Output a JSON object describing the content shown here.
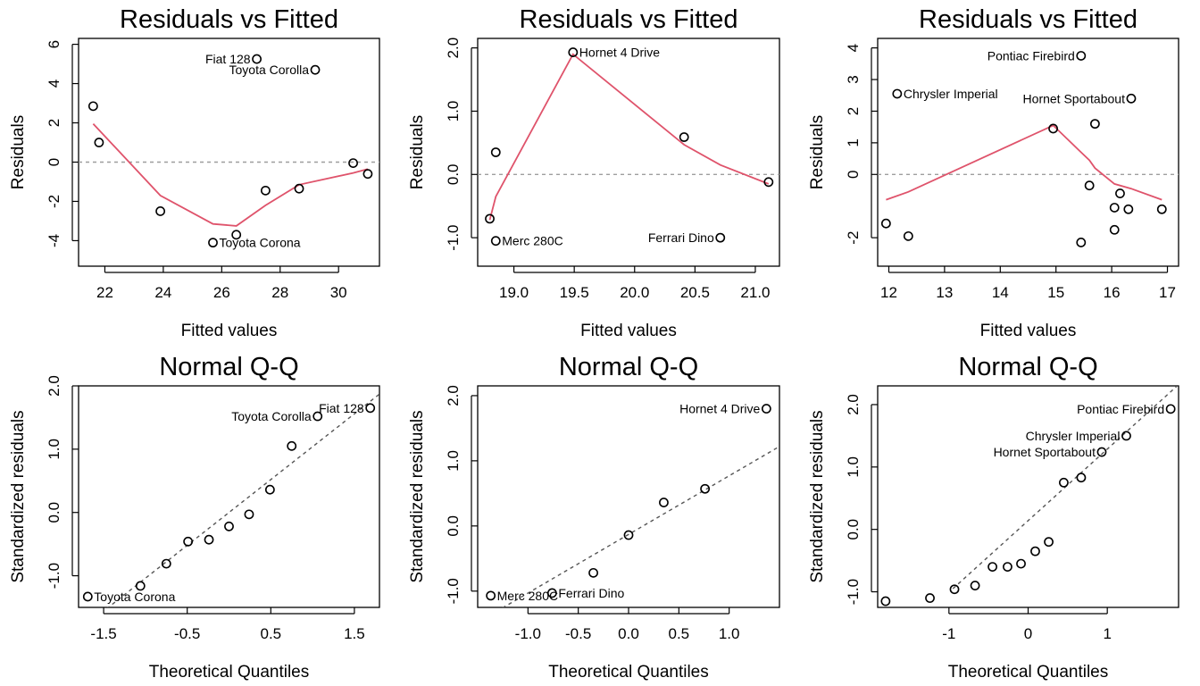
{
  "chart_data": [
    {
      "type": "scatter",
      "title": "Residuals vs Fitted",
      "xlabel": "Fitted values",
      "ylabel": "Residuals",
      "xlim": [
        21.1,
        31.4
      ],
      "ylim": [
        -5.3,
        6.3
      ],
      "xticks": [
        22,
        24,
        26,
        28,
        30
      ],
      "yticks": [
        -4,
        -2,
        0,
        2,
        4,
        6
      ],
      "ytick_labels": [
        "-4",
        "-2",
        "0",
        "2",
        "4",
        "6"
      ],
      "refline": {
        "kind": "h",
        "value": 0
      },
      "points": [
        {
          "x": 21.6,
          "y": 2.85
        },
        {
          "x": 21.8,
          "y": 1.0
        },
        {
          "x": 23.9,
          "y": -2.5
        },
        {
          "x": 25.7,
          "y": -4.1
        },
        {
          "x": 26.5,
          "y": -3.7
        },
        {
          "x": 27.2,
          "y": 5.25
        },
        {
          "x": 27.5,
          "y": -1.45
        },
        {
          "x": 28.65,
          "y": -1.35
        },
        {
          "x": 29.2,
          "y": 4.7
        },
        {
          "x": 30.5,
          "y": -0.05
        },
        {
          "x": 31.0,
          "y": -0.6
        }
      ],
      "smooth": [
        [
          21.6,
          1.95
        ],
        [
          23.9,
          -1.7
        ],
        [
          25.7,
          -3.15
        ],
        [
          26.5,
          -3.25
        ],
        [
          27.5,
          -2.2
        ],
        [
          28.65,
          -1.15
        ],
        [
          30.5,
          -0.55
        ],
        [
          31.0,
          -0.35
        ]
      ],
      "labels": [
        {
          "text": "Fiat 128",
          "x": 27.2,
          "y": 5.25,
          "pos": "left"
        },
        {
          "text": "Toyota Corolla",
          "x": 29.2,
          "y": 4.7,
          "pos": "left"
        },
        {
          "text": "Toyota Corona",
          "x": 25.7,
          "y": -4.1,
          "pos": "right"
        }
      ]
    },
    {
      "type": "scatter",
      "title": "Residuals vs Fitted",
      "xlabel": "Fitted values",
      "ylabel": "Residuals",
      "xlim": [
        18.7,
        21.2
      ],
      "ylim": [
        -1.45,
        2.15
      ],
      "xticks": [
        19.0,
        19.5,
        20.0,
        20.5,
        21.0
      ],
      "xtick_labels": [
        "19.0",
        "19.5",
        "20.0",
        "20.5",
        "21.0"
      ],
      "yticks": [
        -1.0,
        0.0,
        1.0,
        2.0
      ],
      "ytick_labels": [
        "-1.0",
        "0.0",
        "1.0",
        "2.0"
      ],
      "refline": {
        "kind": "h",
        "value": 0
      },
      "points": [
        {
          "x": 18.8,
          "y": -0.7
        },
        {
          "x": 18.85,
          "y": 0.35
        },
        {
          "x": 18.85,
          "y": -1.05
        },
        {
          "x": 19.49,
          "y": 1.93
        },
        {
          "x": 20.41,
          "y": 0.59
        },
        {
          "x": 20.71,
          "y": -1.0
        },
        {
          "x": 21.11,
          "y": -0.12
        }
      ],
      "smooth": [
        [
          18.8,
          -0.72
        ],
        [
          18.85,
          -0.35
        ],
        [
          19.49,
          1.9
        ],
        [
          20.41,
          0.47
        ],
        [
          20.71,
          0.15
        ],
        [
          21.11,
          -0.15
        ]
      ],
      "labels": [
        {
          "text": "Hornet 4 Drive",
          "x": 19.49,
          "y": 1.93,
          "pos": "right"
        },
        {
          "text": "Merc 280C",
          "x": 18.85,
          "y": -1.05,
          "pos": "right"
        },
        {
          "text": "Ferrari Dino",
          "x": 20.71,
          "y": -1.0,
          "pos": "left"
        }
      ]
    },
    {
      "type": "scatter",
      "title": "Residuals vs Fitted",
      "xlabel": "Fitted values",
      "ylabel": "Residuals",
      "xlim": [
        11.8,
        17.2
      ],
      "ylim": [
        -2.9,
        4.3
      ],
      "xticks": [
        12,
        13,
        14,
        15,
        16,
        17
      ],
      "yticks": [
        -2,
        0,
        1,
        2,
        3,
        4
      ],
      "ytick_labels": [
        "-2",
        "0",
        "1",
        "2",
        "3",
        "4"
      ],
      "refline": {
        "kind": "h",
        "value": 0
      },
      "points": [
        {
          "x": 11.95,
          "y": -1.55
        },
        {
          "x": 12.15,
          "y": 2.55
        },
        {
          "x": 12.35,
          "y": -1.95
        },
        {
          "x": 14.95,
          "y": 1.45
        },
        {
          "x": 15.45,
          "y": 3.75
        },
        {
          "x": 15.45,
          "y": -2.15
        },
        {
          "x": 15.6,
          "y": -0.35
        },
        {
          "x": 15.7,
          "y": 1.6
        },
        {
          "x": 16.05,
          "y": -1.05
        },
        {
          "x": 16.05,
          "y": -1.75
        },
        {
          "x": 16.15,
          "y": -0.6
        },
        {
          "x": 16.3,
          "y": -1.1
        },
        {
          "x": 16.35,
          "y": 2.4
        },
        {
          "x": 16.9,
          "y": -1.1
        }
      ],
      "smooth": [
        [
          11.95,
          -0.8
        ],
        [
          12.35,
          -0.55
        ],
        [
          14.95,
          1.55
        ],
        [
          15.45,
          0.7
        ],
        [
          15.6,
          0.45
        ],
        [
          15.7,
          0.2
        ],
        [
          16.05,
          -0.3
        ],
        [
          16.35,
          -0.45
        ],
        [
          16.9,
          -0.8
        ]
      ],
      "labels": [
        {
          "text": "Pontiac Firebird",
          "x": 15.45,
          "y": 3.75,
          "pos": "left"
        },
        {
          "text": "Chrysler Imperial",
          "x": 12.15,
          "y": 2.55,
          "pos": "right"
        },
        {
          "text": "Hornet Sportabout",
          "x": 16.35,
          "y": 2.4,
          "pos": "left"
        }
      ]
    },
    {
      "type": "scatter",
      "title": "Normal Q-Q",
      "xlabel": "Theoretical Quantiles",
      "ylabel": "Standardized residuals",
      "xlim": [
        -1.8,
        1.8
      ],
      "ylim": [
        -1.5,
        2.0
      ],
      "xticks": [
        -1.5,
        -0.5,
        0.5,
        1.5
      ],
      "xtick_labels": [
        "-1.5",
        "-0.5",
        "0.5",
        "1.5"
      ],
      "yticks": [
        -1.0,
        0.0,
        1.0,
        2.0
      ],
      "ytick_labels": [
        "-1.0",
        "0.0",
        "1.0",
        "2.0"
      ],
      "refline": {
        "kind": "line",
        "from": [
          -1.8,
          -1.87
        ],
        "to": [
          1.8,
          1.87
        ]
      },
      "points": [
        {
          "x": -1.69,
          "y": -1.33
        },
        {
          "x": -1.06,
          "y": -1.16
        },
        {
          "x": -0.75,
          "y": -0.81
        },
        {
          "x": -0.49,
          "y": -0.46
        },
        {
          "x": -0.24,
          "y": -0.43
        },
        {
          "x": 0.0,
          "y": -0.22
        },
        {
          "x": 0.24,
          "y": -0.03
        },
        {
          "x": 0.49,
          "y": 0.36
        },
        {
          "x": 0.75,
          "y": 1.05
        },
        {
          "x": 1.06,
          "y": 1.52
        },
        {
          "x": 1.69,
          "y": 1.65
        }
      ],
      "labels": [
        {
          "text": "Fiat 128",
          "x": 1.69,
          "y": 1.65,
          "pos": "left"
        },
        {
          "text": "Toyota Corolla",
          "x": 1.06,
          "y": 1.52,
          "pos": "left"
        },
        {
          "text": "Toyota Corona",
          "x": -1.69,
          "y": -1.33,
          "pos": "right"
        }
      ]
    },
    {
      "type": "scatter",
      "title": "Normal Q-Q",
      "xlabel": "Theoretical Quantiles",
      "ylabel": "Standardized residuals",
      "xlim": [
        -1.5,
        1.5
      ],
      "ylim": [
        -1.25,
        2.15
      ],
      "xticks": [
        -1.0,
        -0.5,
        0.0,
        0.5,
        1.0
      ],
      "xtick_labels": [
        "-1.0",
        "-0.5",
        "0.0",
        "0.5",
        "1.0"
      ],
      "yticks": [
        -1.0,
        0.0,
        1.0,
        2.0
      ],
      "ytick_labels": [
        "-1.0",
        "0.0",
        "1.0",
        "2.0"
      ],
      "refline": {
        "kind": "line",
        "from": [
          -1.5,
          -1.48
        ],
        "to": [
          1.5,
          1.22
        ]
      },
      "points": [
        {
          "x": -1.37,
          "y": -1.07
        },
        {
          "x": -0.76,
          "y": -1.03
        },
        {
          "x": -0.35,
          "y": -0.72
        },
        {
          "x": 0.0,
          "y": -0.14
        },
        {
          "x": 0.35,
          "y": 0.36
        },
        {
          "x": 0.76,
          "y": 0.57
        },
        {
          "x": 1.37,
          "y": 1.8
        }
      ],
      "labels": [
        {
          "text": "Hornet 4 Drive",
          "x": 1.37,
          "y": 1.8,
          "pos": "left"
        },
        {
          "text": "Merc 280C",
          "x": -1.37,
          "y": -1.07,
          "pos": "right"
        },
        {
          "text": "Ferrari Dino",
          "x": -0.76,
          "y": -1.03,
          "pos": "right"
        }
      ]
    },
    {
      "type": "scatter",
      "title": "Normal Q-Q",
      "xlabel": "Theoretical Quantiles",
      "ylabel": "Standardized residuals",
      "xlim": [
        -1.9,
        1.9
      ],
      "ylim": [
        -1.25,
        2.3
      ],
      "xticks": [
        -1,
        0,
        1
      ],
      "yticks": [
        -1.0,
        0.0,
        1.0,
        2.0
      ],
      "ytick_labels": [
        "-1.0",
        "0.0",
        "1.0",
        "2.0"
      ],
      "refline": {
        "kind": "line",
        "from": [
          -0.95,
          -0.95
        ],
        "to": [
          1.9,
          2.32
        ]
      },
      "points": [
        {
          "x": -1.8,
          "y": -1.15
        },
        {
          "x": -1.24,
          "y": -1.1
        },
        {
          "x": -0.93,
          "y": -0.96
        },
        {
          "x": -0.67,
          "y": -0.9
        },
        {
          "x": -0.45,
          "y": -0.6
        },
        {
          "x": -0.26,
          "y": -0.6
        },
        {
          "x": -0.09,
          "y": -0.55
        },
        {
          "x": 0.09,
          "y": -0.35
        },
        {
          "x": 0.26,
          "y": -0.2
        },
        {
          "x": 0.45,
          "y": 0.75
        },
        {
          "x": 0.67,
          "y": 0.83
        },
        {
          "x": 0.93,
          "y": 1.24
        },
        {
          "x": 1.24,
          "y": 1.5
        },
        {
          "x": 1.8,
          "y": 1.93
        }
      ],
      "labels": [
        {
          "text": "Pontiac Firebird",
          "x": 1.8,
          "y": 1.93,
          "pos": "left"
        },
        {
          "text": "Chrysler Imperial",
          "x": 1.24,
          "y": 1.5,
          "pos": "left"
        },
        {
          "text": "Hornet Sportabout",
          "x": 0.93,
          "y": 1.24,
          "pos": "left"
        }
      ]
    }
  ],
  "colors": {
    "smooth": "#DF536B",
    "refline_h": "#9E9E9E",
    "refline_qq": "#555555",
    "axes": "#000000"
  }
}
